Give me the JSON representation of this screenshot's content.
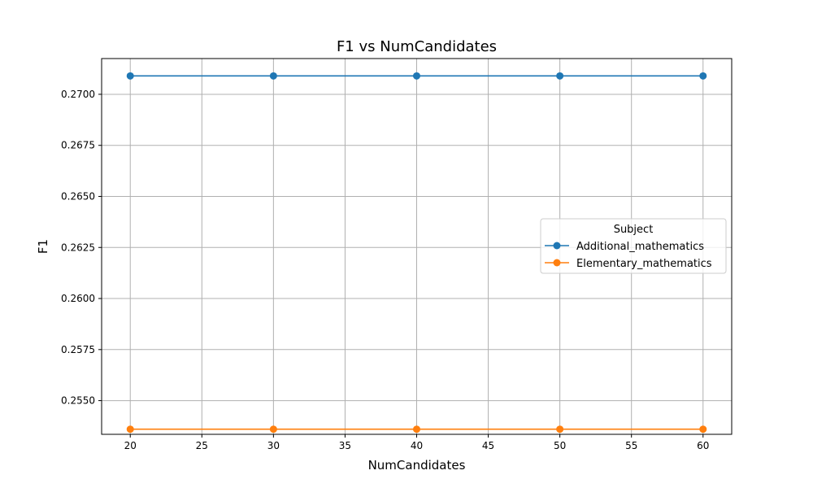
{
  "chart_data": {
    "type": "line",
    "title": "F1 vs NumCandidates",
    "xlabel": "NumCandidates",
    "ylabel": "F1",
    "x": [
      20,
      30,
      40,
      50,
      60
    ],
    "xlim": [
      18,
      62
    ],
    "ylim": [
      0.25335,
      0.27175
    ],
    "xticks": [
      20,
      25,
      30,
      35,
      40,
      45,
      50,
      55,
      60
    ],
    "yticks": [
      0.255,
      0.2575,
      0.26,
      0.2625,
      0.265,
      0.2675,
      0.27
    ],
    "ytick_labels": [
      "0.2550",
      "0.2575",
      "0.2600",
      "0.2625",
      "0.2650",
      "0.2675",
      "0.2700"
    ],
    "grid": true,
    "legend_title": "Subject",
    "legend_position": "center-right",
    "series": [
      {
        "name": "Additional_mathematics",
        "color": "#1f77b4",
        "marker": "circle",
        "values": [
          0.2709,
          0.2709,
          0.2709,
          0.2709,
          0.2709
        ]
      },
      {
        "name": "Elementary_mathematics",
        "color": "#ff7f0e",
        "marker": "circle",
        "values": [
          0.2536,
          0.2536,
          0.2536,
          0.2536,
          0.2536
        ]
      }
    ]
  }
}
